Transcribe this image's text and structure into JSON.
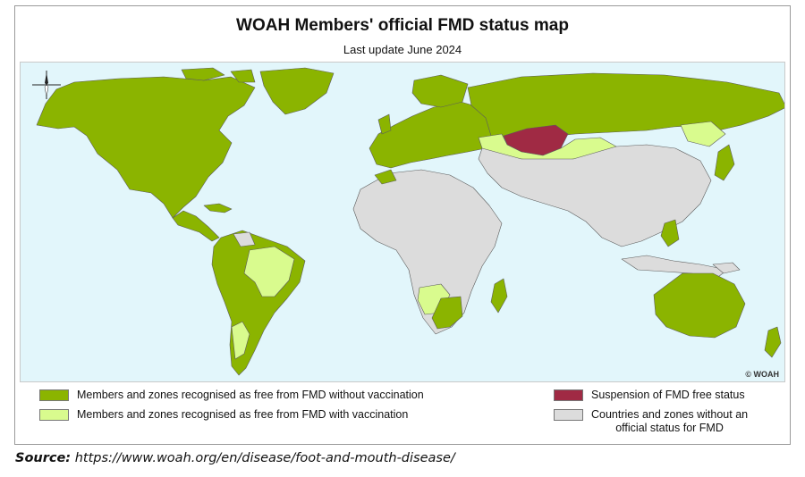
{
  "title": "WOAH Members' official FMD status map",
  "subtitle": "Last update June 2024",
  "copyright": "© WOAH",
  "colors": {
    "ocean": "#e2f6fb",
    "free_without_vaccination": "#8bb400",
    "free_with_vaccination": "#d9fb8e",
    "suspension": "#a02a44",
    "no_status": "#dcdcdc",
    "border": "#5c5c5c"
  },
  "legend": [
    {
      "id": "free-without-vaccination",
      "label": "Members and zones recognised as free from FMD without vaccination",
      "color": "#8bb400"
    },
    {
      "id": "free-with-vaccination",
      "label": "Members and zones recognised as free from FMD with vaccination",
      "color": "#d9fb8e"
    },
    {
      "id": "suspension",
      "label": "Suspension of FMD free status",
      "color": "#a02a44"
    },
    {
      "id": "no-status",
      "label_line1": "Countries and zones without an",
      "label_line2": "official status for FMD",
      "color": "#dcdcdc"
    }
  ],
  "source": {
    "prefix": "Source:",
    "url": " https://www.woah.org/en/disease/foot-and-mouth-disease/"
  }
}
